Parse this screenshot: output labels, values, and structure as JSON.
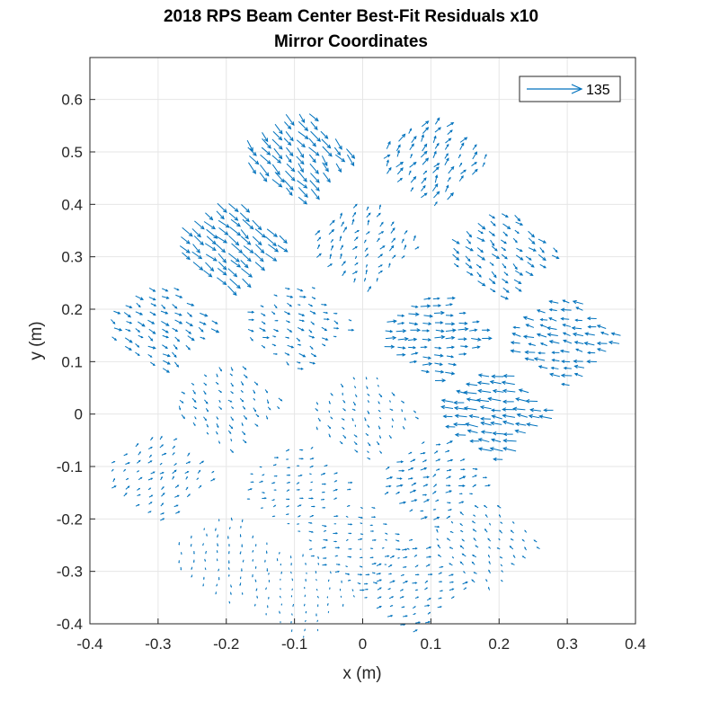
{
  "chart_data": {
    "type": "quiver",
    "title": "2018 RPS Beam Center Best-Fit Residuals x10",
    "subtitle": "Mirror Coordinates",
    "xlabel": "x (m)",
    "ylabel": "y (m)",
    "xlim": [
      -0.4,
      0.4
    ],
    "ylim": [
      -0.4,
      0.68
    ],
    "xticks": [
      "-0.4",
      "-0.3",
      "-0.2",
      "-0.1",
      "0",
      "0.1",
      "0.2",
      "0.3",
      "0.4"
    ],
    "yticks": [
      "-0.4",
      "-0.3",
      "-0.2",
      "-0.1",
      "0",
      "0.1",
      "0.2",
      "0.3",
      "0.4",
      "0.5",
      "0.6"
    ],
    "grid": true,
    "legend_position": "top-right",
    "legend_label": "135",
    "arrow_color": "#0072BD",
    "segments": [
      {
        "center": [
          -0.1,
          0.5
        ],
        "u": 0.011,
        "v": -0.017,
        "jitter": 0.004,
        "sampling": 0.018
      },
      {
        "center": [
          0.1,
          0.48
        ],
        "u": 0.006,
        "v": 0.01,
        "jitter": 0.004,
        "sampling": 0.018
      },
      {
        "center": [
          -0.2,
          0.33
        ],
        "u": 0.013,
        "v": -0.015,
        "jitter": 0.003,
        "sampling": 0.018
      },
      {
        "center": [
          0.0,
          0.32
        ],
        "u": 0.004,
        "v": 0.007,
        "jitter": 0.003,
        "sampling": 0.018
      },
      {
        "center": [
          0.2,
          0.31
        ],
        "u": 0.008,
        "v": -0.008,
        "jitter": 0.003,
        "sampling": 0.018
      },
      {
        "center": [
          -0.3,
          0.17
        ],
        "u": 0.008,
        "v": -0.006,
        "jitter": 0.003,
        "sampling": 0.018
      },
      {
        "center": [
          -0.1,
          0.17
        ],
        "u": 0.006,
        "v": -0.003,
        "jitter": 0.003,
        "sampling": 0.018
      },
      {
        "center": [
          0.1,
          0.15
        ],
        "u": 0.012,
        "v": 0.0,
        "jitter": 0.003,
        "sampling": 0.018
      },
      {
        "center": [
          0.3,
          0.14
        ],
        "u": -0.012,
        "v": 0.003,
        "jitter": 0.003,
        "sampling": 0.018
      },
      {
        "center": [
          -0.2,
          0.02
        ],
        "u": 0.003,
        "v": -0.005,
        "jitter": 0.002,
        "sampling": 0.018
      },
      {
        "center": [
          0.0,
          0.0
        ],
        "u": 0.002,
        "v": -0.004,
        "jitter": 0.002,
        "sampling": 0.018
      },
      {
        "center": [
          0.2,
          0.0
        ],
        "u": -0.016,
        "v": 0.003,
        "jitter": 0.003,
        "sampling": 0.018
      },
      {
        "center": [
          -0.3,
          -0.12
        ],
        "u": 0.004,
        "v": 0.004,
        "jitter": 0.002,
        "sampling": 0.018
      },
      {
        "center": [
          -0.1,
          -0.14
        ],
        "u": 0.004,
        "v": 0.001,
        "jitter": 0.002,
        "sampling": 0.018
      },
      {
        "center": [
          0.1,
          -0.13
        ],
        "u": 0.006,
        "v": 0.002,
        "jitter": 0.003,
        "sampling": 0.018
      },
      {
        "center": [
          -0.2,
          -0.27
        ],
        "u": 0.0,
        "v": -0.004,
        "jitter": 0.001,
        "sampling": 0.018
      },
      {
        "center": [
          -0.01,
          -0.25
        ],
        "u": 0.004,
        "v": 0.0,
        "jitter": 0.002,
        "sampling": 0.018
      },
      {
        "center": [
          0.18,
          -0.25
        ],
        "u": -0.003,
        "v": 0.004,
        "jitter": 0.002,
        "sampling": 0.018
      },
      {
        "center": [
          -0.09,
          -0.34
        ],
        "u": 0.0,
        "v": -0.003,
        "jitter": 0.001,
        "sampling": 0.018
      },
      {
        "center": [
          0.07,
          -0.33
        ],
        "u": 0.005,
        "v": 0.002,
        "jitter": 0.002,
        "sampling": 0.018
      }
    ]
  }
}
